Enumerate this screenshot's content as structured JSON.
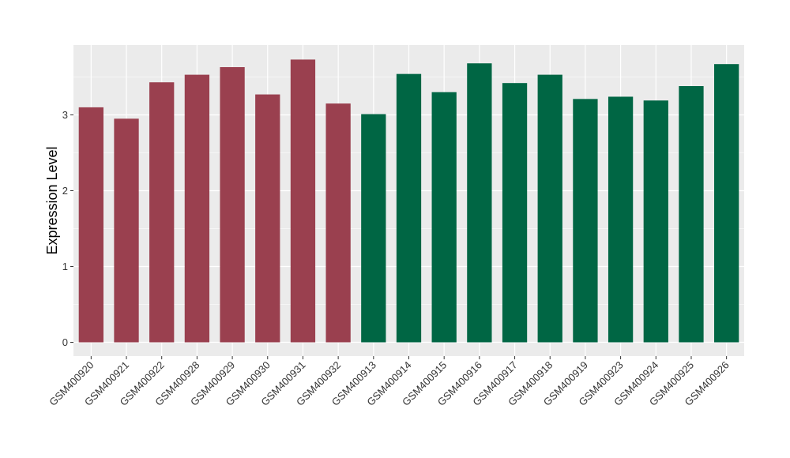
{
  "chart_data": {
    "type": "bar",
    "title": "",
    "xlabel": "",
    "ylabel": "Expression Level",
    "ylim": [
      -0.18,
      3.9
    ],
    "yticks": [
      0,
      1,
      2,
      3
    ],
    "grid": true,
    "legend": "none",
    "background": "#ebebeb",
    "gridline_color": "#ffffff",
    "categories": [
      "GSM400920",
      "GSM400921",
      "GSM400922",
      "GSM400928",
      "GSM400929",
      "GSM400930",
      "GSM400931",
      "GSM400932",
      "GSM400913",
      "GSM400914",
      "GSM400915",
      "GSM400916",
      "GSM400917",
      "GSM400918",
      "GSM400919",
      "GSM400923",
      "GSM400924",
      "GSM400925",
      "GSM400926"
    ],
    "values": [
      3.1,
      2.95,
      3.43,
      3.53,
      3.63,
      3.27,
      3.73,
      3.15,
      3.01,
      3.54,
      3.3,
      3.68,
      3.42,
      3.53,
      3.21,
      3.24,
      3.19,
      3.38,
      3.67
    ],
    "groups": [
      0,
      0,
      0,
      0,
      0,
      0,
      0,
      0,
      1,
      1,
      1,
      1,
      1,
      1,
      1,
      1,
      1,
      1,
      1
    ],
    "colors": [
      "#9a404f",
      "#006644"
    ]
  }
}
